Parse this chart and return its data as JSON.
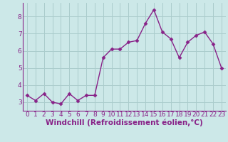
{
  "x": [
    0,
    1,
    2,
    3,
    4,
    5,
    6,
    7,
    8,
    9,
    10,
    11,
    12,
    13,
    14,
    15,
    16,
    17,
    18,
    19,
    20,
    21,
    22,
    23
  ],
  "y": [
    3.4,
    3.1,
    3.5,
    3.0,
    2.9,
    3.5,
    3.1,
    3.4,
    3.4,
    5.6,
    6.1,
    6.1,
    6.5,
    6.6,
    7.6,
    8.4,
    7.1,
    6.7,
    5.6,
    6.5,
    6.9,
    7.1,
    6.4,
    5.0
  ],
  "line_color": "#882288",
  "marker": "D",
  "markersize": 2.5,
  "linewidth": 1.0,
  "xlabel": "Windchill (Refroidissement éolien,°C)",
  "xlim": [
    -0.5,
    23.5
  ],
  "ylim": [
    2.5,
    8.8
  ],
  "yticks": [
    3,
    4,
    5,
    6,
    7,
    8
  ],
  "xticks": [
    0,
    1,
    2,
    3,
    4,
    5,
    6,
    7,
    8,
    9,
    10,
    11,
    12,
    13,
    14,
    15,
    16,
    17,
    18,
    19,
    20,
    21,
    22,
    23
  ],
  "bg_color": "#cce8e8",
  "grid_color": "#aacccc",
  "tick_color": "#882288",
  "tick_label_fontsize": 6.5,
  "xlabel_fontsize": 7.5,
  "border_color": "#882288"
}
